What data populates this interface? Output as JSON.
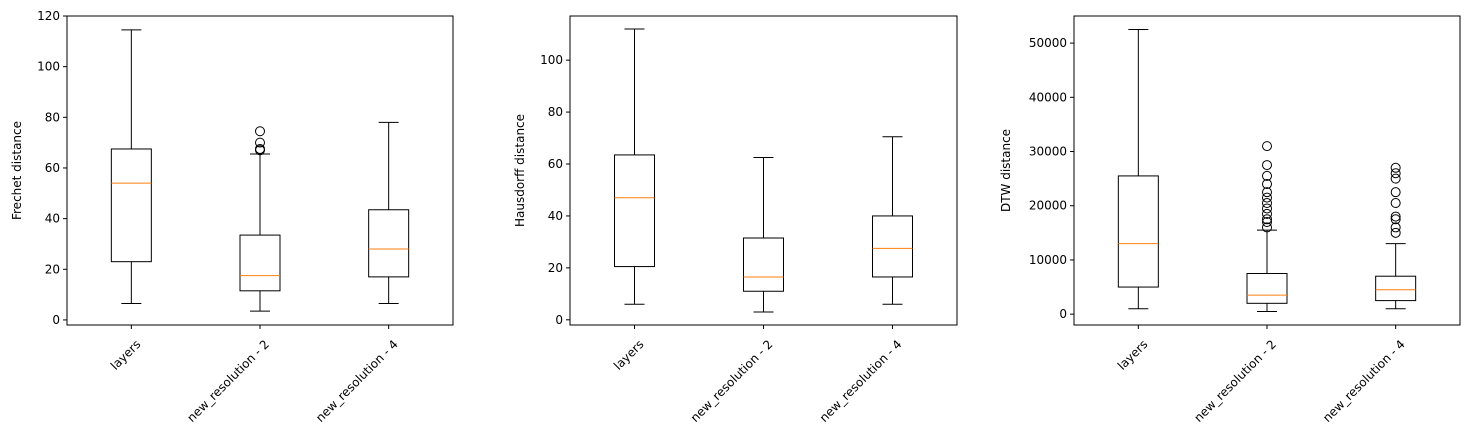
{
  "chart_data": [
    {
      "type": "box",
      "title": "",
      "xlabel": "",
      "ylabel": "Frechet distance",
      "ylim": [
        -2,
        120
      ],
      "yticks": [
        0,
        20,
        40,
        60,
        80,
        100,
        120
      ],
      "categories": [
        "layers",
        "new_resolution - 2",
        "new_resolution - 4"
      ],
      "boxes": [
        {
          "whisker_low": 6.5,
          "q1": 23,
          "median": 54,
          "q3": 67.5,
          "whisker_high": 114.5,
          "outliers": []
        },
        {
          "whisker_low": 3.5,
          "q1": 11.5,
          "median": 17.5,
          "q3": 33.5,
          "whisker_high": 65.5,
          "outliers": [
            67,
            67.5,
            70,
            74.5
          ]
        },
        {
          "whisker_low": 6.5,
          "q1": 17,
          "median": 28,
          "q3": 43.5,
          "whisker_high": 78,
          "outliers": []
        }
      ]
    },
    {
      "type": "box",
      "title": "",
      "xlabel": "",
      "ylabel": "Hausdorff distance",
      "ylim": [
        -2,
        117
      ],
      "yticks": [
        0,
        20,
        40,
        60,
        80,
        100
      ],
      "categories": [
        "layers",
        "new_resolution - 2",
        "new_resolution - 4"
      ],
      "boxes": [
        {
          "whisker_low": 6,
          "q1": 20.5,
          "median": 47,
          "q3": 63.5,
          "whisker_high": 112,
          "outliers": []
        },
        {
          "whisker_low": 3,
          "q1": 11,
          "median": 16.5,
          "q3": 31.5,
          "whisker_high": 62.5,
          "outliers": []
        },
        {
          "whisker_low": 6,
          "q1": 16.5,
          "median": 27.5,
          "q3": 40,
          "whisker_high": 70.5,
          "outliers": []
        }
      ]
    },
    {
      "type": "box",
      "title": "",
      "xlabel": "",
      "ylabel": "DTW distance",
      "ylim": [
        -2000,
        55000
      ],
      "yticks": [
        0,
        10000,
        20000,
        30000,
        40000,
        50000
      ],
      "categories": [
        "layers",
        "new_resolution - 2",
        "new_resolution - 4"
      ],
      "boxes": [
        {
          "whisker_low": 1000,
          "q1": 5000,
          "median": 13000,
          "q3": 25500,
          "whisker_high": 52500,
          "outliers": []
        },
        {
          "whisker_low": 500,
          "q1": 2000,
          "median": 3500,
          "q3": 7500,
          "whisker_high": 15500,
          "outliers": [
            16000,
            17000,
            17500,
            18500,
            19500,
            20500,
            21500,
            22500,
            24000,
            25500,
            27500,
            31000
          ]
        },
        {
          "whisker_low": 1000,
          "q1": 2500,
          "median": 4500,
          "q3": 7000,
          "whisker_high": 13000,
          "outliers": [
            15000,
            16000,
            17500,
            18000,
            20500,
            22500,
            25000,
            26000,
            27000
          ]
        }
      ]
    }
  ]
}
